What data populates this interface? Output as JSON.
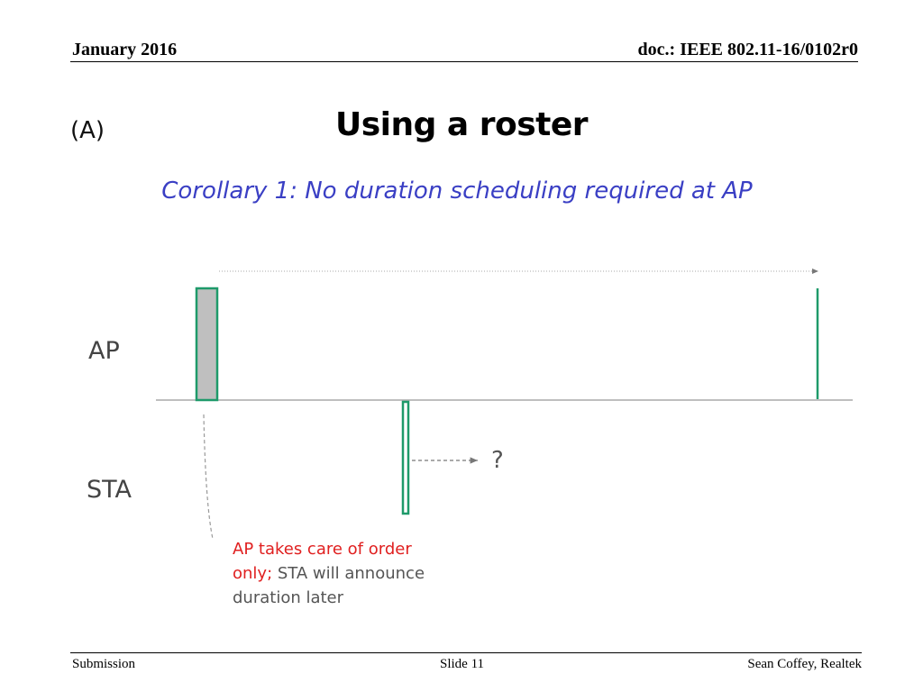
{
  "header": {
    "date": "January 2016",
    "doc": "doc.: IEEE 802.11-16/0102r0"
  },
  "slide": {
    "label": "(A)",
    "title": "Using a roster",
    "subtitle": "Corollary 1: No duration scheduling required at AP"
  },
  "diagram": {
    "rows": {
      "ap": "AP",
      "sta": "STA"
    },
    "question_mark": "?",
    "note": {
      "red_part": "AP takes care of order only;",
      "rest": " STA will announce duration later"
    },
    "colors": {
      "frame_outline": "#1e9a6a",
      "frame_fill": "#bfbfbf",
      "axis": "#999999",
      "arrow": "#777777",
      "note_red": "#e02020",
      "subtitle_blue": "#3a3fc4"
    }
  },
  "footer": {
    "left": "Submission",
    "center": "Slide 11",
    "right": "Sean Coffey, Realtek"
  }
}
